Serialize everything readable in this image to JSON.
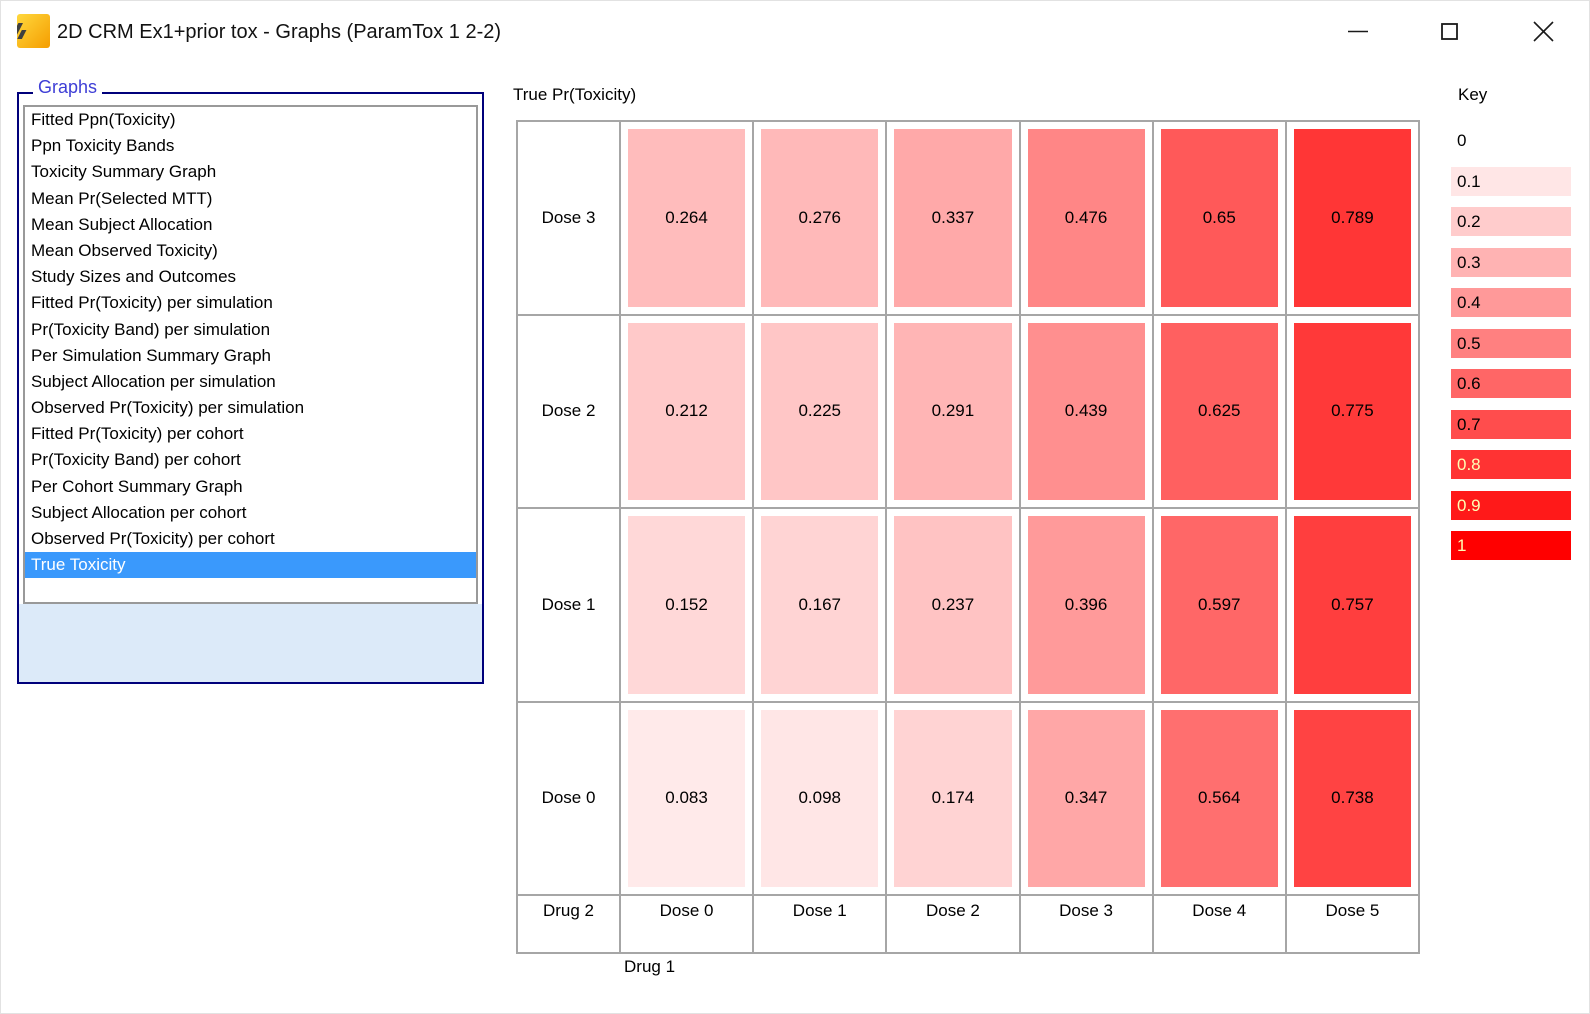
{
  "window": {
    "title": "2D CRM Ex1+prior tox - Graphs (ParamTox 1 2-2)",
    "icons": {
      "app_icon": "chart-slashes-icon",
      "minimize": "minimize-icon",
      "maximize": "maximize-icon",
      "close": "close-icon"
    }
  },
  "colors": {
    "selection_blue": "#3a99fc",
    "groupbox_border_navy": "#00007b",
    "groupbox_label_blue": "#3e3ed6",
    "groupbox_fill_lightblue": "#dceaf9",
    "grid_border_gray": "#a6a6a6",
    "heat_zero": "#ffffff",
    "heat_one": "#ff0000",
    "key_light_text": "#ffffb4"
  },
  "graphs_panel": {
    "label": "Graphs",
    "selected_index": 17,
    "items": [
      "Fitted Ppn(Toxicity)",
      "Ppn Toxicity Bands",
      "Toxicity Summary Graph",
      "Mean Pr(Selected MTT)",
      "Mean Subject Allocation",
      "Mean Observed Toxicity)",
      "Study Sizes and Outcomes",
      "Fitted Pr(Toxicity) per simulation",
      "Pr(Toxicity Band) per simulation",
      "Per Simulation Summary Graph",
      "Subject Allocation per simulation",
      "Observed Pr(Toxicity) per simulation",
      "Fitted Pr(Toxicity) per cohort",
      "Pr(Toxicity Band) per cohort",
      "Per Cohort Summary Graph",
      "Subject Allocation per cohort",
      "Observed Pr(Toxicity) per cohort",
      "True Toxicity"
    ]
  },
  "chart_data": {
    "type": "heatmap",
    "title": "True Pr(Toxicity)",
    "x_axis_label": "Drug 1",
    "y_axis_label": "Drug 2",
    "col_labels": [
      "Dose 0",
      "Dose 1",
      "Dose 2",
      "Dose 3",
      "Dose 4",
      "Dose 5"
    ],
    "row_labels": [
      "Dose 3",
      "Dose 2",
      "Dose 1",
      "Dose 0"
    ],
    "values": [
      [
        0.264,
        0.276,
        0.337,
        0.476,
        0.65,
        0.789
      ],
      [
        0.212,
        0.225,
        0.291,
        0.439,
        0.625,
        0.775
      ],
      [
        0.152,
        0.167,
        0.237,
        0.396,
        0.597,
        0.757
      ],
      [
        0.083,
        0.098,
        0.174,
        0.347,
        0.564,
        0.738
      ]
    ],
    "color_scale": {
      "min": 0,
      "max": 1,
      "min_color": "#ffffff",
      "max_color": "#ff0000",
      "light_text_threshold": 0.8
    },
    "legend_position": "right",
    "key": {
      "title": "Key",
      "entries": [
        0,
        0.1,
        0.2,
        0.3,
        0.4,
        0.5,
        0.6,
        0.7,
        0.8,
        0.9,
        1
      ]
    }
  }
}
